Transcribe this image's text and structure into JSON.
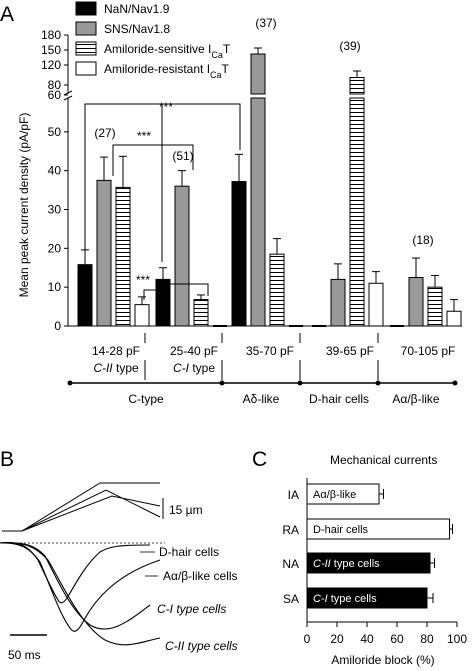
{
  "chart_data": [
    {
      "panel": "A",
      "type": "bar",
      "ylabel": "Mean peak current density (pA/pF)",
      "y_ticks_lower": [
        0,
        10,
        20,
        30,
        40,
        50,
        60
      ],
      "y_ticks_upper": [
        60,
        80,
        120,
        150,
        180
      ],
      "ylim": [
        0,
        180
      ],
      "axis_break": [
        60,
        60
      ],
      "legend_position": "top-left",
      "series": [
        {
          "name": "NaN/Nav1.9",
          "fill": "#000000",
          "pattern": "solid",
          "values": [
            15.8,
            12.0,
            37.2,
            0,
            0
          ],
          "errors": [
            3.8,
            3.0,
            7.0,
            0,
            0
          ]
        },
        {
          "name": "SNS/Nav1.8",
          "fill": "#999999",
          "pattern": "solid",
          "values": [
            37.5,
            36.0,
            142,
            12.0,
            12.5
          ],
          "errors": [
            6.0,
            4.0,
            12,
            4.0,
            5.0
          ]
        },
        {
          "name": "Amiloride-sensitive I",
          "subscript": "Ca",
          "suffix": "T",
          "fill": "#ffffff",
          "pattern": "horizontal-stripes",
          "values": [
            35.7,
            6.8,
            18.5,
            95,
            10.0
          ],
          "errors": [
            8.0,
            1.2,
            4.0,
            13,
            3.0
          ]
        },
        {
          "name": "Amiloride-resistant I",
          "subscript": "Ca",
          "suffix": "T",
          "fill": "#ffffff",
          "pattern": "solid",
          "values": [
            5.5,
            0,
            0,
            11.0,
            3.8
          ],
          "errors": [
            2.0,
            0,
            0,
            3.0,
            3.0
          ]
        }
      ],
      "categories": [
        {
          "range": "14-28 pF",
          "type": "C-II type",
          "n": "(27)"
        },
        {
          "range": "25-40 pF",
          "type": "C-I type",
          "n": "(51)"
        },
        {
          "range": "35-70 pF",
          "type": "",
          "n": "(37)"
        },
        {
          "range": "39-65 pF",
          "type": "",
          "n": "(39)"
        },
        {
          "range": "70-105 pF",
          "type": "",
          "n": "(18)"
        }
      ],
      "cell_groups": [
        "C-type",
        "Aδ-like",
        "D-hair cells",
        "Aα/β-like"
      ],
      "significance": [
        "***",
        "***",
        "***"
      ]
    },
    {
      "panel": "B",
      "type": "line",
      "labels": [
        "D-hair cells",
        "Aα/β-like cells",
        "C-I type cells",
        "C-II type cells"
      ],
      "scale_bar_x": "50 ms",
      "scale_bar_y": "15 µm"
    },
    {
      "panel": "C",
      "type": "bar",
      "orientation": "horizontal",
      "title": "Mechanical currents",
      "xlabel": "Amiloride block (%)",
      "xlim": [
        0,
        100
      ],
      "x_ticks": [
        0,
        20,
        40,
        60,
        80,
        100
      ],
      "categories": [
        "IA",
        "RA",
        "NA",
        "SA"
      ],
      "values": [
        48,
        95,
        82,
        80
      ],
      "errors": [
        3,
        2,
        3,
        4
      ],
      "bar_labels": [
        "Aα/β-like",
        "D-hair cells",
        "C-II type cells",
        "C-I type cells"
      ],
      "fills": [
        "#ffffff",
        "#ffffff",
        "#000000",
        "#000000"
      ]
    }
  ]
}
